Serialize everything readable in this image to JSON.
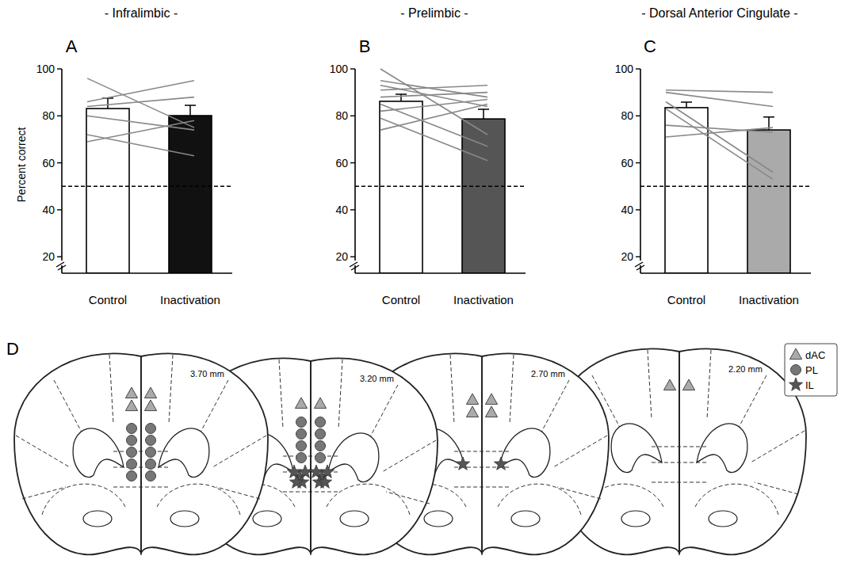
{
  "chart_data": [
    {
      "type": "bar",
      "panel_label": "A",
      "title": "- Infralimbic -",
      "y_label": "Percent correct",
      "categories": [
        "Control",
        "Inactivation"
      ],
      "values": [
        83.1,
        80.1
      ],
      "errors": [
        4.4,
        4.4
      ],
      "colors": [
        "#ffffff",
        "#111111"
      ],
      "subjects": [
        [
          96,
          75
        ],
        [
          86,
          95
        ],
        [
          84,
          88
        ],
        [
          80,
          74
        ],
        [
          72,
          63
        ],
        [
          69,
          78
        ]
      ],
      "reference": 50,
      "ylim": [
        13,
        100
      ],
      "yticks": [
        20,
        40,
        60,
        80,
        100
      ]
    },
    {
      "type": "bar",
      "panel_label": "B",
      "title": "- Prelimbic -",
      "categories": [
        "Control",
        "Inactivation"
      ],
      "values": [
        86.2,
        78.7
      ],
      "errors": [
        3,
        4.1
      ],
      "colors": [
        "#ffffff",
        "#555555"
      ],
      "subjects": [
        [
          100,
          72
        ],
        [
          95,
          88
        ],
        [
          93,
          84
        ],
        [
          91,
          93
        ],
        [
          88,
          90
        ],
        [
          85,
          67
        ],
        [
          82,
          87
        ],
        [
          79,
          61
        ],
        [
          74,
          85
        ]
      ],
      "reference": 50,
      "ylim": [
        13,
        100
      ],
      "yticks": [
        20,
        40,
        60,
        80,
        100
      ]
    },
    {
      "type": "bar",
      "panel_label": "C",
      "title": "- Dorsal Anterior Cingulate -",
      "categories": [
        "Control",
        "Inactivation"
      ],
      "values": [
        83.5,
        74
      ],
      "errors": [
        2.3,
        5.5
      ],
      "colors": [
        "#ffffff",
        "#aaaaaa"
      ],
      "subjects": [
        [
          91,
          90
        ],
        [
          90,
          84
        ],
        [
          86,
          56
        ],
        [
          83,
          53
        ],
        [
          76,
          73
        ],
        [
          71,
          75
        ]
      ],
      "reference": 50,
      "ylim": [
        13,
        100
      ],
      "yticks": [
        20,
        40,
        60,
        80,
        100
      ]
    }
  ],
  "panel_d": {
    "panel_label": "D",
    "legend_labels": [
      "dAC",
      "PL",
      "IL"
    ],
    "sections": [
      {
        "label": "3.70 mm",
        "dAC": 2,
        "PL": 5,
        "IL": 0
      },
      {
        "label": "3.20 mm",
        "dAC": 1,
        "PL": 4,
        "IL": 5
      },
      {
        "label": "2.70 mm",
        "dAC": 2,
        "PL": 0,
        "IL": 1
      },
      {
        "label": "2.20 mm",
        "dAC": 1,
        "PL": 0,
        "IL": 0
      }
    ]
  }
}
